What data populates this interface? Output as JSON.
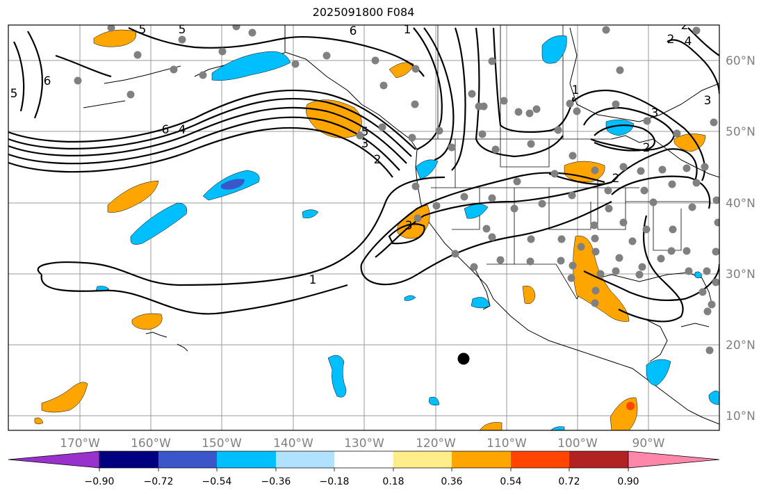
{
  "title": "2025091800 F084",
  "lon_labels": [
    "170°W",
    "160°W",
    "150°W",
    "140°W",
    "130°W",
    "120°W",
    "110°W",
    "100°W",
    "90°W"
  ],
  "lat_labels": [
    "60°N",
    "50°N",
    "40°N",
    "30°N",
    "20°N",
    "10°N"
  ],
  "colorbar": {
    "colors": [
      "#9932cc",
      "#000080",
      "#3a56c8",
      "#00bfff",
      "#b0e2ff",
      "#ffffff",
      "#ffec8b",
      "#ffa500",
      "#ff4500",
      "#b22222",
      "#ff88aa"
    ],
    "tick_labels": [
      "−0.90",
      "−0.72",
      "−0.54",
      "−0.36",
      "−0.18",
      "0.18",
      "0.36",
      "0.54",
      "0.72",
      "0.90"
    ]
  },
  "contour_labels": [
    "5",
    "6",
    "5",
    "6",
    "4",
    "5",
    "3",
    "2",
    "1",
    "1",
    "3",
    "2",
    "3",
    "1",
    "2",
    "3",
    "2",
    "5",
    "6",
    "2",
    "4"
  ],
  "colors": {
    "positive": "#ffa500",
    "negative": "#00bfff",
    "deep_negative": "#3a56c8",
    "station": "#808080"
  }
}
